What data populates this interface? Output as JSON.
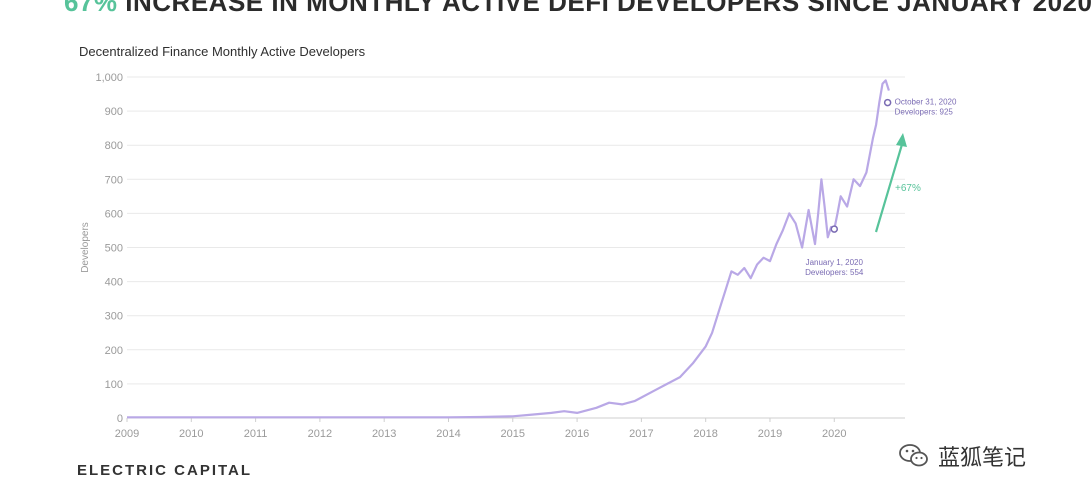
{
  "headline": {
    "accent": "67%",
    "rest": " INCREASE IN MONTHLY ACTIVE DEFI DEVELOPERS SINCE JANUARY 2020"
  },
  "footer_logo": "ELECTRIC CAPITAL",
  "watermark": "蓝狐笔记",
  "colors": {
    "line": "#b9a8e6",
    "accent": "#57c39a",
    "annotation": "#7a6bb3",
    "grid": "#e9e9e9",
    "axis_text": "#9a9a9a"
  },
  "icons": {
    "watermark_icon": "wechat-icon"
  },
  "chart_data": {
    "type": "line",
    "title": "Decentralized Finance Monthly Active Developers",
    "xlabel": "",
    "ylabel": "Developers",
    "xlim": [
      2009.0,
      2021.1
    ],
    "ylim": [
      0,
      1000
    ],
    "x_ticks": [
      "2009",
      "2010",
      "2011",
      "2012",
      "2013",
      "2014",
      "2015",
      "2016",
      "2017",
      "2018",
      "2019",
      "2020"
    ],
    "y_ticks": [
      "0",
      "100",
      "200",
      "300",
      "400",
      "500",
      "600",
      "700",
      "800",
      "900",
      "1,000"
    ],
    "grid": "horizontal",
    "series": [
      {
        "x": [
          2009.0,
          2009.5,
          2010.0,
          2011.0,
          2012.0,
          2013.0,
          2014.0,
          2014.5,
          2015.0,
          2015.3,
          2015.6,
          2015.8,
          2016.0,
          2016.3,
          2016.5,
          2016.7,
          2016.9,
          2017.0,
          2017.2,
          2017.4,
          2017.6,
          2017.8,
          2018.0,
          2018.1,
          2018.2,
          2018.3,
          2018.4,
          2018.5,
          2018.6,
          2018.7,
          2018.8,
          2018.9,
          2019.0,
          2019.1,
          2019.2,
          2019.3,
          2019.4,
          2019.5,
          2019.6,
          2019.7,
          2019.75,
          2019.8,
          2019.85,
          2019.9,
          2019.95,
          2020.0,
          2020.05,
          2020.1,
          2020.2,
          2020.3,
          2020.4,
          2020.5,
          2020.6,
          2020.65,
          2020.7,
          2020.75,
          2020.8,
          2020.85
        ],
        "y": [
          2,
          2,
          2,
          2,
          2,
          2,
          2,
          3,
          5,
          10,
          15,
          20,
          15,
          30,
          45,
          40,
          50,
          60,
          80,
          100,
          120,
          160,
          210,
          250,
          310,
          370,
          430,
          420,
          440,
          410,
          450,
          470,
          460,
          510,
          550,
          600,
          570,
          500,
          610,
          510,
          600,
          700,
          620,
          530,
          560,
          554,
          600,
          650,
          620,
          700,
          680,
          720,
          820,
          860,
          925,
          980,
          990,
          960
        ]
      }
    ],
    "annotations": [
      {
        "text": "January 1, 2020",
        "value_text": "Developers: 554",
        "x": 2020.0,
        "y": 554
      },
      {
        "text": "October 31, 2020",
        "value_text": "Developers: 925",
        "x": 2020.83,
        "y": 925
      },
      {
        "text": "+67%"
      }
    ]
  }
}
